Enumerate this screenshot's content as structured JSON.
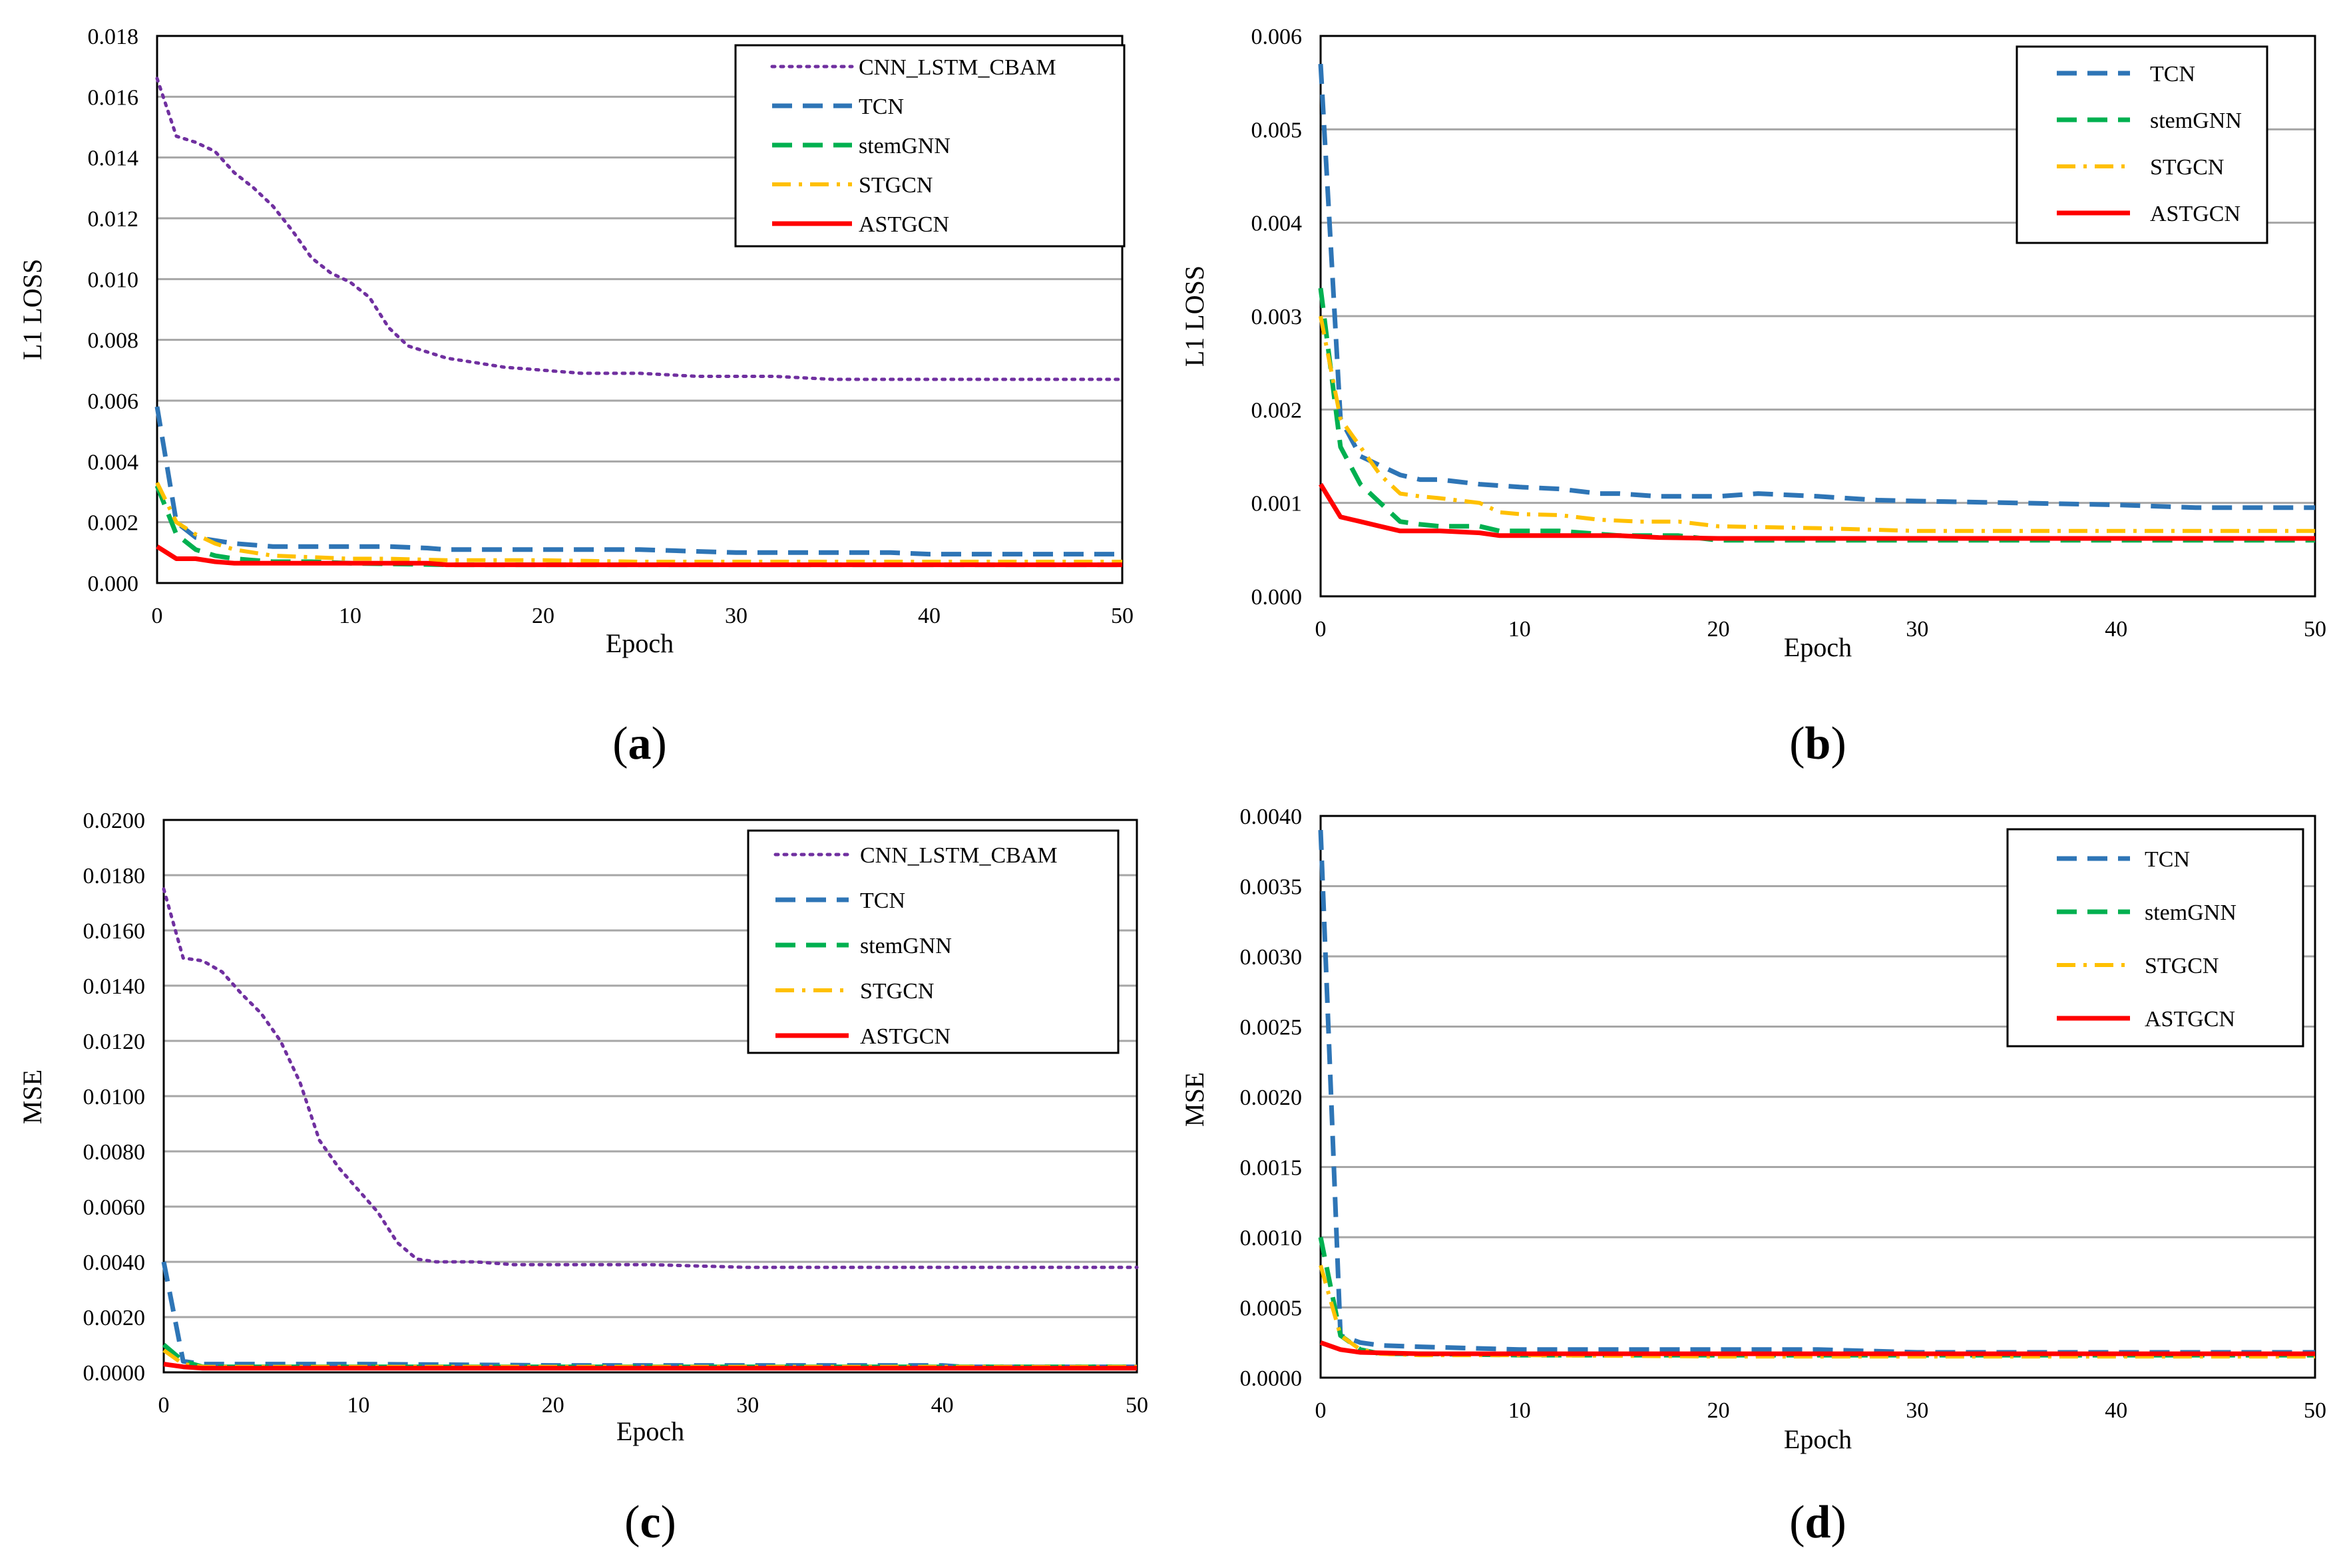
{
  "figure": {
    "colors": {
      "CNN_LSTM_CBAM": "#7030a0",
      "TCN": "#2e75b6",
      "stemGNN": "#00b050",
      "STGCN": "#ffc000",
      "ASTGCN": "#ff0000",
      "grid": "#a6a6a6",
      "frame": "#000000"
    }
  },
  "chart_data": [
    {
      "id": "a",
      "panel_label": "a",
      "type": "line",
      "xlabel": "Epoch",
      "ylabel": "L1 LOSS",
      "xlim": [
        0,
        50
      ],
      "ylim": [
        0,
        0.018
      ],
      "xticks": [
        0,
        10,
        20,
        30,
        40,
        50
      ],
      "yticks": [
        "0.000",
        "0.002",
        "0.004",
        "0.006",
        "0.008",
        "0.010",
        "0.012",
        "0.014",
        "0.016",
        "0.018"
      ],
      "legend_position": "top-right",
      "series": [
        {
          "name": "CNN_LSTM_CBAM",
          "style": "dotted",
          "x": [
            0,
            1,
            2,
            3,
            4,
            5,
            6,
            7,
            8,
            9,
            10,
            11,
            12,
            13,
            14,
            15,
            16,
            17,
            18,
            19,
            20,
            22,
            25,
            28,
            30,
            32,
            35,
            38,
            40,
            45,
            50
          ],
          "y": [
            0.0166,
            0.0147,
            0.0145,
            0.0142,
            0.0135,
            0.013,
            0.0124,
            0.0116,
            0.0107,
            0.0102,
            0.0099,
            0.0094,
            0.0084,
            0.0078,
            0.0076,
            0.0074,
            0.0073,
            0.0072,
            0.0071,
            0.00705,
            0.007,
            0.0069,
            0.0069,
            0.0068,
            0.0068,
            0.0068,
            0.0067,
            0.0067,
            0.0067,
            0.0067,
            0.0067
          ]
        },
        {
          "name": "TCN",
          "style": "dashed",
          "x": [
            0,
            1,
            2,
            3,
            4,
            6,
            8,
            10,
            12,
            14,
            15,
            20,
            25,
            30,
            35,
            38,
            40,
            45,
            50
          ],
          "y": [
            0.0058,
            0.002,
            0.0015,
            0.0014,
            0.0013,
            0.0012,
            0.0012,
            0.0012,
            0.0012,
            0.00115,
            0.0011,
            0.0011,
            0.0011,
            0.001,
            0.001,
            0.001,
            0.00095,
            0.00095,
            0.00095
          ]
        },
        {
          "name": "stemGNN",
          "style": "dashed",
          "x": [
            0,
            1,
            2,
            3,
            4,
            6,
            8,
            10,
            15,
            20,
            30,
            40,
            50
          ],
          "y": [
            0.0032,
            0.0016,
            0.0011,
            0.0009,
            0.0008,
            0.0007,
            0.0007,
            0.00065,
            0.0006,
            0.0006,
            0.0006,
            0.0006,
            0.0006
          ]
        },
        {
          "name": "STGCN",
          "style": "dashdot",
          "x": [
            0,
            1,
            2,
            3,
            4,
            6,
            8,
            10,
            12,
            15,
            20,
            25,
            30,
            40,
            50
          ],
          "y": [
            0.0033,
            0.002,
            0.0016,
            0.0013,
            0.0011,
            0.0009,
            0.00085,
            0.0008,
            0.0008,
            0.00075,
            0.00075,
            0.0007,
            0.0007,
            0.0007,
            0.0007
          ]
        },
        {
          "name": "ASTGCN",
          "style": "solid",
          "x": [
            0,
            1,
            2,
            3,
            4,
            6,
            8,
            10,
            14,
            15,
            20,
            30,
            40,
            50
          ],
          "y": [
            0.0012,
            0.0008,
            0.0008,
            0.0007,
            0.00065,
            0.00065,
            0.00065,
            0.00065,
            0.00065,
            0.0006,
            0.0006,
            0.0006,
            0.0006,
            0.0006
          ]
        }
      ]
    },
    {
      "id": "b",
      "panel_label": "b",
      "type": "line",
      "xlabel": "Epoch",
      "ylabel": "L1 LOSS",
      "xlim": [
        0,
        50
      ],
      "ylim": [
        0,
        0.006
      ],
      "xticks": [
        0,
        10,
        20,
        30,
        40,
        50
      ],
      "yticks": [
        "0.000",
        "0.001",
        "0.002",
        "0.003",
        "0.004",
        "0.005",
        "0.006"
      ],
      "legend_position": "top-right",
      "series": [
        {
          "name": "TCN",
          "style": "dashed",
          "x": [
            0,
            1,
            2,
            3,
            4,
            5,
            6,
            8,
            10,
            12,
            14,
            15,
            17,
            20,
            22,
            25,
            28,
            30,
            35,
            40,
            44,
            50
          ],
          "y": [
            0.0057,
            0.0019,
            0.0015,
            0.0014,
            0.0013,
            0.00125,
            0.00125,
            0.0012,
            0.00117,
            0.00115,
            0.0011,
            0.0011,
            0.00107,
            0.00107,
            0.0011,
            0.00107,
            0.00103,
            0.00102,
            0.001,
            0.00098,
            0.00095,
            0.00095
          ]
        },
        {
          "name": "stemGNN",
          "style": "dashed",
          "x": [
            0,
            1,
            2,
            3,
            4,
            5,
            6,
            8,
            9,
            10,
            12,
            15,
            18,
            20,
            30,
            40,
            45,
            50
          ],
          "y": [
            0.0033,
            0.0016,
            0.0012,
            0.001,
            0.0008,
            0.00077,
            0.00075,
            0.00075,
            0.0007,
            0.0007,
            0.0007,
            0.00065,
            0.00065,
            0.0006,
            0.0006,
            0.0006,
            0.0006,
            0.0006
          ]
        },
        {
          "name": "STGCN",
          "style": "dashdot",
          "x": [
            0,
            1,
            2,
            3,
            4,
            5,
            6,
            8,
            9,
            10,
            12,
            14,
            16,
            18,
            20,
            25,
            30,
            40,
            50
          ],
          "y": [
            0.003,
            0.0019,
            0.0016,
            0.0013,
            0.0011,
            0.00107,
            0.00105,
            0.001,
            0.0009,
            0.00088,
            0.00087,
            0.00082,
            0.0008,
            0.0008,
            0.00075,
            0.00073,
            0.0007,
            0.0007,
            0.0007
          ]
        },
        {
          "name": "ASTGCN",
          "style": "solid",
          "x": [
            0,
            1,
            2,
            3,
            4,
            5,
            6,
            8,
            9,
            10,
            12,
            15,
            17,
            20,
            30,
            40,
            50
          ],
          "y": [
            0.0012,
            0.00085,
            0.0008,
            0.00075,
            0.0007,
            0.0007,
            0.0007,
            0.00068,
            0.00065,
            0.00065,
            0.00065,
            0.00065,
            0.00063,
            0.00062,
            0.00062,
            0.00062,
            0.00062
          ]
        }
      ]
    },
    {
      "id": "c",
      "panel_label": "c",
      "type": "line",
      "xlabel": "Epoch",
      "ylabel": "MSE",
      "xlim": [
        0,
        50
      ],
      "ylim": [
        0,
        0.02
      ],
      "xticks": [
        0,
        10,
        20,
        30,
        40,
        50
      ],
      "yticks": [
        "0.0000",
        "0.0020",
        "0.0040",
        "0.0060",
        "0.0080",
        "0.0100",
        "0.0120",
        "0.0140",
        "0.0160",
        "0.0180",
        "0.0200"
      ],
      "legend_position": "top-right",
      "series": [
        {
          "name": "CNN_LSTM_CBAM",
          "style": "dotted",
          "x": [
            0,
            1,
            2,
            3,
            4,
            5,
            6,
            7,
            8,
            9,
            10,
            11,
            12,
            13,
            14,
            15,
            16,
            18,
            20,
            25,
            30,
            35,
            40,
            45,
            50
          ],
          "y": [
            0.0175,
            0.015,
            0.0149,
            0.0145,
            0.0137,
            0.013,
            0.012,
            0.0105,
            0.0084,
            0.0074,
            0.0066,
            0.0058,
            0.0047,
            0.0041,
            0.004,
            0.004,
            0.004,
            0.0039,
            0.0039,
            0.0039,
            0.0038,
            0.0038,
            0.0038,
            0.0038,
            0.0038
          ]
        },
        {
          "name": "TCN",
          "style": "dashed",
          "x": [
            0,
            1,
            2,
            5,
            10,
            20,
            30,
            40,
            41,
            50
          ],
          "y": [
            0.004,
            0.0004,
            0.0003,
            0.0003,
            0.0003,
            0.00025,
            0.00025,
            0.00025,
            0.0002,
            0.0002
          ]
        },
        {
          "name": "stemGNN",
          "style": "dashed",
          "x": [
            0,
            1,
            2,
            5,
            10,
            20,
            30,
            40,
            50
          ],
          "y": [
            0.001,
            0.0004,
            0.0002,
            0.0002,
            0.0002,
            0.0002,
            0.0002,
            0.0002,
            0.0002
          ]
        },
        {
          "name": "STGCN",
          "style": "dashdot",
          "x": [
            0,
            1,
            2,
            5,
            10,
            20,
            30,
            40,
            50
          ],
          "y": [
            0.0008,
            0.0003,
            0.0002,
            0.0002,
            0.0002,
            0.0002,
            0.0002,
            0.0002,
            0.0002
          ]
        },
        {
          "name": "ASTGCN",
          "style": "solid",
          "x": [
            0,
            1,
            2,
            10,
            20,
            30,
            40,
            50
          ],
          "y": [
            0.0003,
            0.0002,
            0.00015,
            0.00015,
            0.00015,
            0.00015,
            0.00015,
            0.00015
          ]
        }
      ]
    },
    {
      "id": "d",
      "panel_label": "d",
      "type": "line",
      "xlabel": "Epoch",
      "ylabel": "MSE",
      "xlim": [
        0,
        50
      ],
      "ylim": [
        0,
        0.004
      ],
      "xticks": [
        0,
        10,
        20,
        30,
        40,
        50
      ],
      "yticks": [
        "0.0000",
        "0.0005",
        "0.0010",
        "0.0015",
        "0.0020",
        "0.0025",
        "0.0030",
        "0.0035",
        "0.0040"
      ],
      "legend_position": "top-right",
      "series": [
        {
          "name": "TCN",
          "style": "dashed",
          "x": [
            0,
            1,
            2,
            3,
            5,
            10,
            20,
            25,
            30,
            40,
            50
          ],
          "y": [
            0.0039,
            0.0003,
            0.00025,
            0.00023,
            0.00022,
            0.0002,
            0.0002,
            0.0002,
            0.00018,
            0.00018,
            0.00018
          ]
        },
        {
          "name": "stemGNN",
          "style": "dashed",
          "x": [
            0,
            1,
            2,
            3,
            5,
            10,
            20,
            30,
            40,
            50
          ],
          "y": [
            0.001,
            0.0003,
            0.0002,
            0.00017,
            0.00017,
            0.00016,
            0.00016,
            0.00016,
            0.00016,
            0.00016
          ]
        },
        {
          "name": "STGCN",
          "style": "dashdot",
          "x": [
            0,
            1,
            2,
            3,
            5,
            10,
            20,
            30,
            40,
            50
          ],
          "y": [
            0.0008,
            0.0003,
            0.0002,
            0.00017,
            0.00016,
            0.00016,
            0.00015,
            0.00015,
            0.00015,
            0.00015
          ]
        },
        {
          "name": "ASTGCN",
          "style": "solid",
          "x": [
            0,
            1,
            2,
            5,
            10,
            20,
            30,
            40,
            50
          ],
          "y": [
            0.00025,
            0.0002,
            0.00018,
            0.00017,
            0.00017,
            0.00017,
            0.00017,
            0.00017,
            0.00017
          ]
        }
      ]
    }
  ]
}
